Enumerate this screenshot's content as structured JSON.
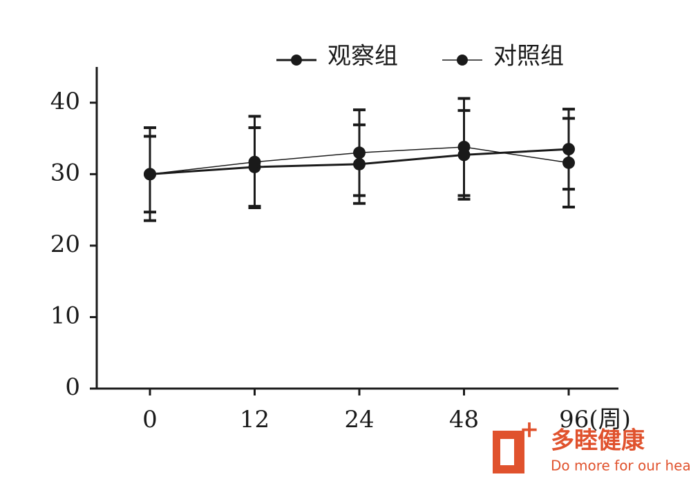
{
  "chart_data": {
    "type": "line",
    "categories": [
      "0",
      "12",
      "24",
      "48",
      "96(周)"
    ],
    "series": [
      {
        "name": "观察组",
        "color": "#1a1a1a",
        "values": [
          30,
          31,
          31.4,
          32.7,
          33.5
        ],
        "errors": [
          5.3,
          5.5,
          5.5,
          6.2,
          5.6
        ]
      },
      {
        "name": "对照组",
        "color": "#1a1a1a",
        "values": [
          30,
          31.7,
          33,
          33.8,
          31.6
        ],
        "errors": [
          6.5,
          6.4,
          6,
          6.8,
          6.2
        ]
      }
    ],
    "ylim": [
      0,
      45
    ],
    "yticks": [
      0,
      10,
      20,
      30,
      40
    ],
    "grid": false,
    "legend": "top-right"
  },
  "watermark": {
    "name": "多睦健康",
    "slogan": "Do more for our health"
  }
}
